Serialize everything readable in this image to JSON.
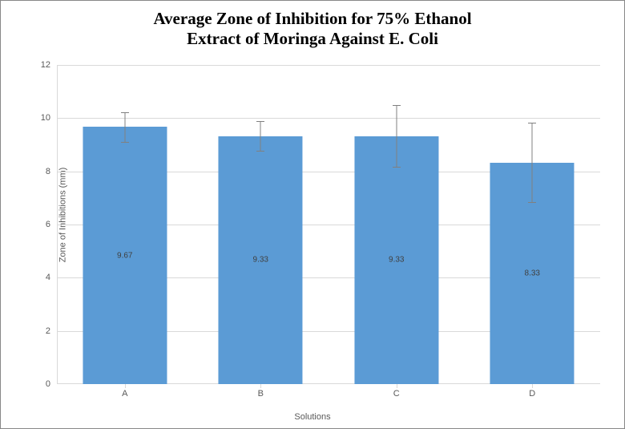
{
  "chart": {
    "type": "bar",
    "title_line1": "Average Zone of Inhibition for 75% Ethanol",
    "title_line2": "Extract of Moringa Against E. Coli",
    "title_fontsize": 21,
    "title_font": "Times New Roman",
    "title_weight": "bold",
    "xlabel": "Solutions",
    "ylabel": "Zone of Inhibitions (mm)",
    "axis_label_fontsize": 11,
    "tick_fontsize": 11,
    "bar_label_fontsize": 10,
    "categories": [
      "A",
      "B",
      "C",
      "D"
    ],
    "values": [
      9.67,
      9.33,
      9.33,
      8.33
    ],
    "errors": [
      0.55,
      0.55,
      1.15,
      1.5
    ],
    "bar_color": "#5b9bd5",
    "background_color": "#ffffff",
    "grid_color": "#d9d9d9",
    "text_color": "#595959",
    "error_color": "#808080",
    "ylim": [
      0,
      12
    ],
    "ytick_step": 2,
    "bar_width_ratio": 0.62,
    "error_cap_width": 10
  }
}
